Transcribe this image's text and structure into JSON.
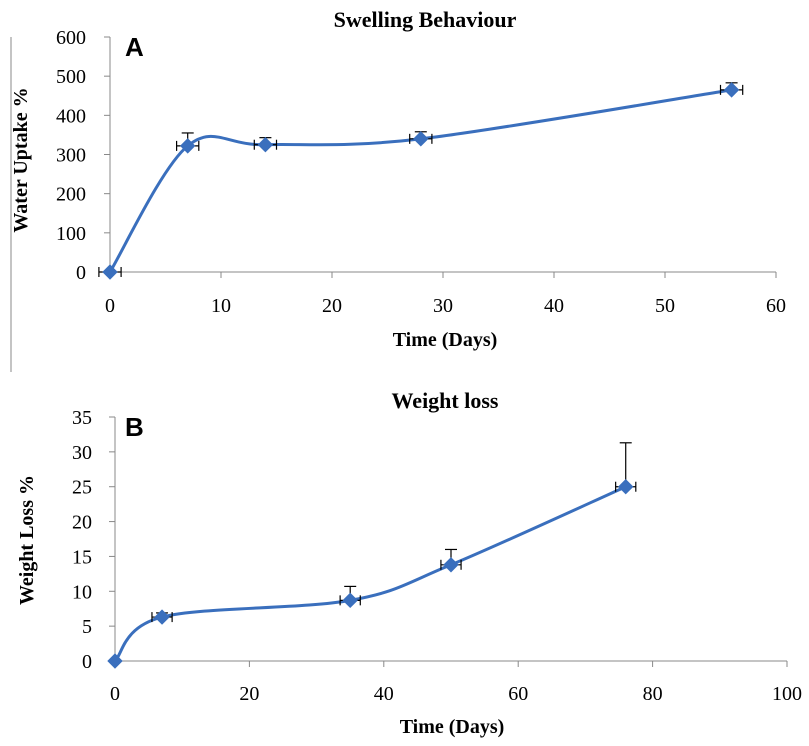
{
  "colors": {
    "series": "#3a6fbd",
    "marker": "#3a6fbd",
    "axis": "#888888",
    "text": "#000000"
  },
  "chart_data": [
    {
      "type": "line",
      "panel_label": "A",
      "title": "Swelling Behaviour",
      "xlabel": "Time (Days)",
      "ylabel": "Water Uptake %",
      "xlim": [
        0,
        60
      ],
      "ylim": [
        0,
        600
      ],
      "xticks": [
        0,
        10,
        20,
        30,
        40,
        50,
        60
      ],
      "yticks": [
        0,
        100,
        200,
        300,
        400,
        500,
        600
      ],
      "grid": false,
      "marker": "diamond",
      "series": [
        {
          "x": [
            0,
            7,
            14,
            28,
            56
          ],
          "y": [
            0,
            322,
            325,
            340,
            465
          ],
          "y_err_plus": [
            0,
            33,
            18,
            18,
            18
          ],
          "x_err": [
            1,
            1,
            1,
            1,
            1
          ]
        }
      ]
    },
    {
      "type": "line",
      "panel_label": "B",
      "title": "Weight loss",
      "xlabel": "Time (Days)",
      "ylabel": "Weight Loss %",
      "xlim": [
        0,
        100
      ],
      "ylim": [
        0,
        35
      ],
      "xticks": [
        0,
        20,
        40,
        60,
        80,
        100
      ],
      "yticks": [
        0,
        5,
        10,
        15,
        20,
        25,
        30,
        35
      ],
      "grid": false,
      "marker": "diamond",
      "series": [
        {
          "x": [
            0,
            7,
            35,
            50,
            76
          ],
          "y": [
            0,
            6.3,
            8.7,
            13.8,
            25
          ],
          "y_err_plus": [
            0,
            0.6,
            2,
            2.2,
            6.3
          ],
          "x_err": [
            0,
            1.5,
            1.5,
            1.5,
            1.5
          ]
        }
      ]
    }
  ]
}
